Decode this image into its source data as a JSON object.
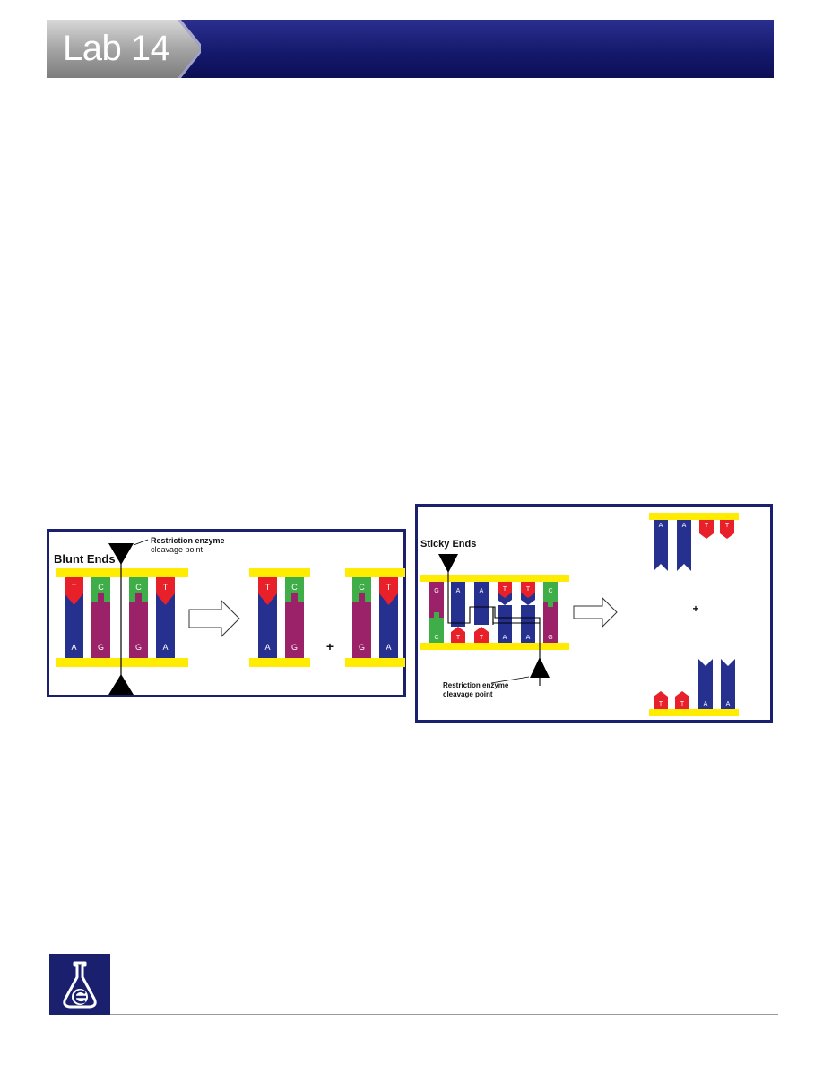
{
  "header": {
    "title": "Lab 14"
  },
  "blunt": {
    "title": "Blunt Ends",
    "cleavage_label_1": "Restriction enzyme",
    "cleavage_label_2": "cleavage point",
    "top_bases": [
      "T",
      "C",
      "C",
      "T"
    ],
    "bottom_bases": [
      "A",
      "G",
      "G",
      "A"
    ],
    "plus": "+"
  },
  "sticky": {
    "title": "Sticky Ends",
    "top_bases": [
      "G",
      "A",
      "A",
      "T",
      "T",
      "C"
    ],
    "bottom_bases": [
      "C",
      "T",
      "T",
      "A",
      "A",
      "G"
    ],
    "cleavage_label_1": "Restriction enzyme",
    "cleavage_label_2": "cleavage point",
    "plus": "+"
  },
  "colors": {
    "header": "#14186a",
    "backbone": "#ffec00",
    "adenine": "#26318f",
    "thymine": "#e8202a",
    "cytosine": "#3fae49",
    "guanine": "#9b2268"
  }
}
